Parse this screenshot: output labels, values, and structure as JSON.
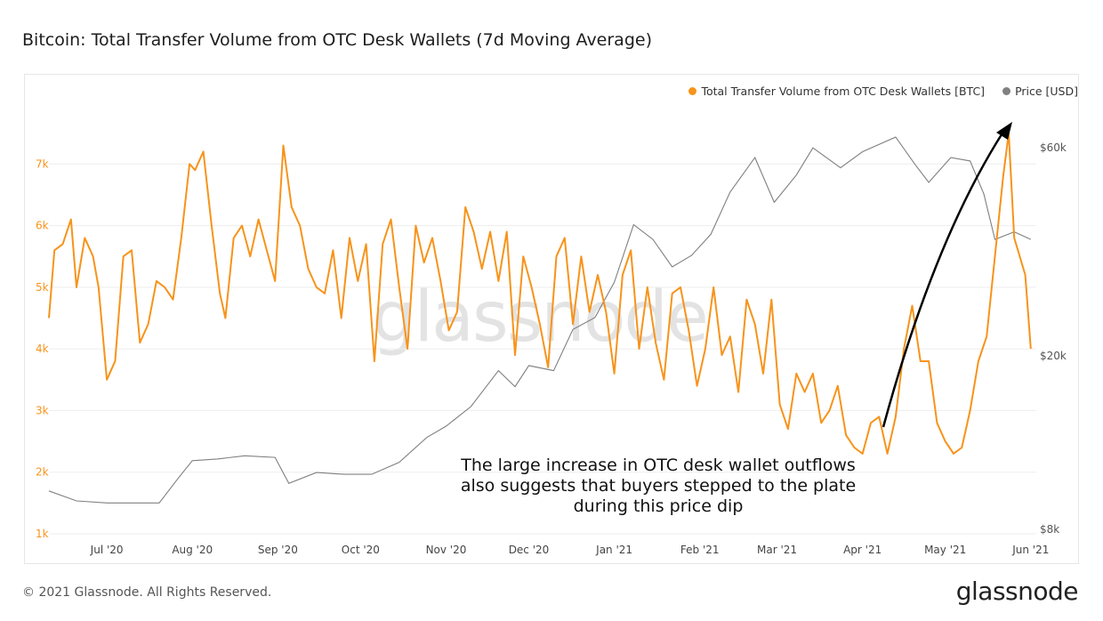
{
  "page": {
    "title": "Bitcoin: Total Transfer Volume from OTC Desk Wallets (7d Moving Average)",
    "copyright": "© 2021 Glassnode. All Rights Reserved.",
    "brand": "glassnode",
    "watermark": "glassnode"
  },
  "legend": {
    "items": [
      {
        "label": "Total Transfer Volume from OTC Desk Wallets [BTC]",
        "color": "#f7931a"
      },
      {
        "label": "Price [USD]",
        "color": "#808080"
      }
    ],
    "placement": "top-right"
  },
  "annotation": {
    "lines": [
      "The large increase in OTC desk wallet outflows",
      "also suggests that buyers stepped to the plate",
      "during this price dip"
    ]
  },
  "chart_data": {
    "type": "line",
    "grid": true,
    "x_ticks": [
      "Jul '20",
      "Aug '20",
      "Sep '20",
      "Oct '20",
      "Nov '20",
      "Dec '20",
      "Jan '21",
      "Feb '21",
      "Mar '21",
      "Apr '21",
      "May '21",
      "Jun '21"
    ],
    "x_range": [
      "2020-06-10",
      "2021-06-03"
    ],
    "y_left": {
      "ticks": [
        "1k",
        "2k",
        "3k",
        "4k",
        "5k",
        "6k",
        "7k"
      ],
      "range": [
        1000,
        8000
      ]
    },
    "y_right": {
      "ticks": [
        "$8k",
        "$20k",
        "$60k"
      ],
      "tick_values": [
        8000,
        20000,
        60000
      ],
      "scale": "log"
    },
    "series": [
      {
        "name": "Total Transfer Volume from OTC Desk Wallets [BTC]",
        "color": "#f7931a",
        "axis": "left",
        "points": [
          [
            "2020-06-10",
            4500
          ],
          [
            "2020-06-12",
            5600
          ],
          [
            "2020-06-15",
            5700
          ],
          [
            "2020-06-18",
            6100
          ],
          [
            "2020-06-20",
            5000
          ],
          [
            "2020-06-23",
            5800
          ],
          [
            "2020-06-26",
            5500
          ],
          [
            "2020-06-28",
            5000
          ],
          [
            "2020-07-01",
            3500
          ],
          [
            "2020-07-04",
            3800
          ],
          [
            "2020-07-07",
            5500
          ],
          [
            "2020-07-10",
            5600
          ],
          [
            "2020-07-13",
            4100
          ],
          [
            "2020-07-16",
            4400
          ],
          [
            "2020-07-19",
            5100
          ],
          [
            "2020-07-22",
            5000
          ],
          [
            "2020-07-25",
            4800
          ],
          [
            "2020-07-28",
            5800
          ],
          [
            "2020-07-31",
            7000
          ],
          [
            "2020-08-02",
            6900
          ],
          [
            "2020-08-05",
            7200
          ],
          [
            "2020-08-08",
            6000
          ],
          [
            "2020-08-11",
            4900
          ],
          [
            "2020-08-13",
            4500
          ],
          [
            "2020-08-16",
            5800
          ],
          [
            "2020-08-19",
            6000
          ],
          [
            "2020-08-22",
            5500
          ],
          [
            "2020-08-25",
            6100
          ],
          [
            "2020-08-28",
            5600
          ],
          [
            "2020-08-31",
            5100
          ],
          [
            "2020-09-03",
            7300
          ],
          [
            "2020-09-06",
            6300
          ],
          [
            "2020-09-09",
            6000
          ],
          [
            "2020-09-12",
            5300
          ],
          [
            "2020-09-15",
            5000
          ],
          [
            "2020-09-18",
            4900
          ],
          [
            "2020-09-21",
            5600
          ],
          [
            "2020-09-24",
            4500
          ],
          [
            "2020-09-27",
            5800
          ],
          [
            "2020-09-30",
            5100
          ],
          [
            "2020-10-03",
            5700
          ],
          [
            "2020-10-06",
            3800
          ],
          [
            "2020-10-09",
            5700
          ],
          [
            "2020-10-12",
            6100
          ],
          [
            "2020-10-15",
            5000
          ],
          [
            "2020-10-18",
            4000
          ],
          [
            "2020-10-21",
            6000
          ],
          [
            "2020-10-24",
            5400
          ],
          [
            "2020-10-27",
            5800
          ],
          [
            "2020-10-30",
            5100
          ],
          [
            "2020-11-02",
            4300
          ],
          [
            "2020-11-05",
            4600
          ],
          [
            "2020-11-08",
            6300
          ],
          [
            "2020-11-11",
            5900
          ],
          [
            "2020-11-14",
            5300
          ],
          [
            "2020-11-17",
            5900
          ],
          [
            "2020-11-20",
            5100
          ],
          [
            "2020-11-23",
            5900
          ],
          [
            "2020-11-26",
            3900
          ],
          [
            "2020-11-29",
            5500
          ],
          [
            "2020-12-02",
            5000
          ],
          [
            "2020-12-05",
            4400
          ],
          [
            "2020-12-08",
            3700
          ],
          [
            "2020-12-11",
            5500
          ],
          [
            "2020-12-14",
            5800
          ],
          [
            "2020-12-17",
            4400
          ],
          [
            "2020-12-20",
            5500
          ],
          [
            "2020-12-23",
            4600
          ],
          [
            "2020-12-26",
            5200
          ],
          [
            "2020-12-29",
            4600
          ],
          [
            "2021-01-01",
            3600
          ],
          [
            "2021-01-04",
            5200
          ],
          [
            "2021-01-07",
            5600
          ],
          [
            "2021-01-10",
            4000
          ],
          [
            "2021-01-13",
            5000
          ],
          [
            "2021-01-16",
            4100
          ],
          [
            "2021-01-19",
            3500
          ],
          [
            "2021-01-22",
            4900
          ],
          [
            "2021-01-25",
            5000
          ],
          [
            "2021-01-28",
            4300
          ],
          [
            "2021-01-31",
            3400
          ],
          [
            "2021-02-03",
            4000
          ],
          [
            "2021-02-06",
            5000
          ],
          [
            "2021-02-09",
            3900
          ],
          [
            "2021-02-12",
            4200
          ],
          [
            "2021-02-15",
            3300
          ],
          [
            "2021-02-18",
            4800
          ],
          [
            "2021-02-21",
            4400
          ],
          [
            "2021-02-24",
            3600
          ],
          [
            "2021-02-27",
            4800
          ],
          [
            "2021-03-02",
            3100
          ],
          [
            "2021-03-05",
            2700
          ],
          [
            "2021-03-08",
            3600
          ],
          [
            "2021-03-11",
            3300
          ],
          [
            "2021-03-14",
            3600
          ],
          [
            "2021-03-17",
            2800
          ],
          [
            "2021-03-20",
            3000
          ],
          [
            "2021-03-23",
            3400
          ],
          [
            "2021-03-26",
            2600
          ],
          [
            "2021-03-29",
            2400
          ],
          [
            "2021-04-01",
            2300
          ],
          [
            "2021-04-04",
            2800
          ],
          [
            "2021-04-07",
            2900
          ],
          [
            "2021-04-10",
            2300
          ],
          [
            "2021-04-13",
            2900
          ],
          [
            "2021-04-16",
            4000
          ],
          [
            "2021-04-19",
            4700
          ],
          [
            "2021-04-22",
            3800
          ],
          [
            "2021-04-25",
            3800
          ],
          [
            "2021-04-28",
            2800
          ],
          [
            "2021-05-01",
            2500
          ],
          [
            "2021-05-04",
            2300
          ],
          [
            "2021-05-07",
            2400
          ],
          [
            "2021-05-10",
            3000
          ],
          [
            "2021-05-13",
            3800
          ],
          [
            "2021-05-16",
            4200
          ],
          [
            "2021-05-19",
            5500
          ],
          [
            "2021-05-22",
            6800
          ],
          [
            "2021-05-24",
            7500
          ],
          [
            "2021-05-26",
            5800
          ],
          [
            "2021-05-28",
            5500
          ],
          [
            "2021-05-30",
            5200
          ],
          [
            "2021-06-01",
            4000
          ]
        ]
      },
      {
        "name": "Price [USD]",
        "color": "#808080",
        "axis": "right",
        "points": [
          [
            "2020-06-10",
            9800
          ],
          [
            "2020-06-20",
            9300
          ],
          [
            "2020-07-01",
            9200
          ],
          [
            "2020-07-10",
            9200
          ],
          [
            "2020-07-20",
            9200
          ],
          [
            "2020-07-27",
            10500
          ],
          [
            "2020-08-01",
            11500
          ],
          [
            "2020-08-10",
            11600
          ],
          [
            "2020-08-20",
            11800
          ],
          [
            "2020-08-31",
            11700
          ],
          [
            "2020-09-05",
            10200
          ],
          [
            "2020-09-15",
            10800
          ],
          [
            "2020-09-25",
            10700
          ],
          [
            "2020-10-05",
            10700
          ],
          [
            "2020-10-15",
            11400
          ],
          [
            "2020-10-25",
            13000
          ],
          [
            "2020-11-01",
            13800
          ],
          [
            "2020-11-10",
            15300
          ],
          [
            "2020-11-20",
            18500
          ],
          [
            "2020-11-26",
            17000
          ],
          [
            "2020-12-01",
            19000
          ],
          [
            "2020-12-10",
            18500
          ],
          [
            "2020-12-17",
            23000
          ],
          [
            "2020-12-25",
            24500
          ],
          [
            "2021-01-01",
            29500
          ],
          [
            "2021-01-08",
            40000
          ],
          [
            "2021-01-15",
            37000
          ],
          [
            "2021-01-22",
            32000
          ],
          [
            "2021-01-29",
            34000
          ],
          [
            "2021-02-05",
            38000
          ],
          [
            "2021-02-12",
            47500
          ],
          [
            "2021-02-21",
            57000
          ],
          [
            "2021-02-28",
            45000
          ],
          [
            "2021-03-08",
            52000
          ],
          [
            "2021-03-14",
            60000
          ],
          [
            "2021-03-24",
            54000
          ],
          [
            "2021-04-01",
            58800
          ],
          [
            "2021-04-13",
            63500
          ],
          [
            "2021-04-20",
            55000
          ],
          [
            "2021-04-25",
            50000
          ],
          [
            "2021-05-03",
            57000
          ],
          [
            "2021-05-10",
            56000
          ],
          [
            "2021-05-15",
            47000
          ],
          [
            "2021-05-19",
            37000
          ],
          [
            "2021-05-26",
            38500
          ],
          [
            "2021-06-01",
            37000
          ]
        ]
      }
    ]
  }
}
